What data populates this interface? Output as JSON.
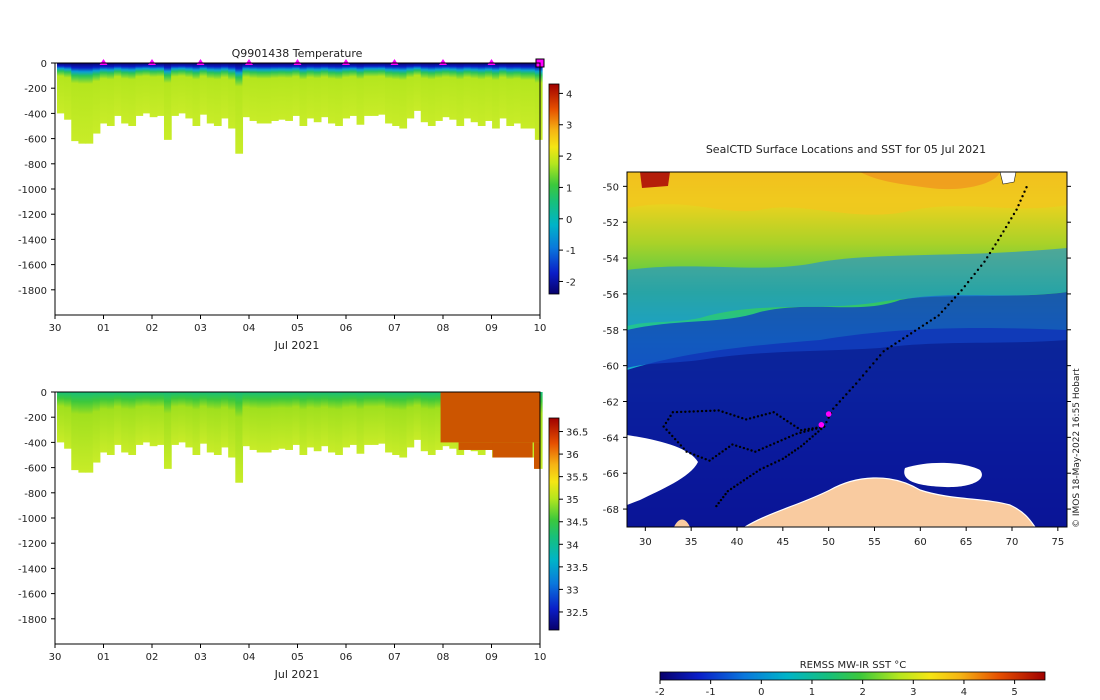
{
  "chart_data": [
    {
      "type": "heatmap",
      "title": "Q9901438  Temperature",
      "xlabel": "Jul 2021",
      "ylabel": "",
      "x_ticks": [
        "30",
        "01",
        "02",
        "03",
        "04",
        "05",
        "06",
        "07",
        "08",
        "09",
        "10"
      ],
      "x_range_days": [
        0,
        10
      ],
      "ylim": [
        -2000,
        0
      ],
      "y_ticks": [
        0,
        -200,
        -400,
        -600,
        -800,
        -1000,
        -1200,
        -1400,
        -1600,
        -1800
      ],
      "colorbar": {
        "range": [
          -2.4,
          4.3
        ],
        "ticks": [
          -2,
          -1,
          0,
          1,
          2,
          3,
          4
        ]
      },
      "profile_markers_days": [
        1,
        2,
        3,
        4,
        5,
        6,
        7,
        8,
        9,
        10
      ],
      "marker_color": "#ff00ff"
    },
    {
      "type": "heatmap",
      "title": "",
      "xlabel": "Jul 2021",
      "ylabel": "",
      "x_ticks": [
        "30",
        "01",
        "02",
        "03",
        "04",
        "05",
        "06",
        "07",
        "08",
        "09",
        "10"
      ],
      "x_range_days": [
        0,
        10
      ],
      "ylim": [
        -2000,
        0
      ],
      "y_ticks": [
        0,
        -200,
        -400,
        -600,
        -800,
        -1000,
        -1200,
        -1400,
        -1600,
        -1800
      ],
      "colorbar": {
        "range": [
          32.1,
          36.8
        ],
        "ticks": [
          32.5,
          33,
          33.5,
          34,
          34.5,
          35,
          35.5,
          36,
          36.5
        ]
      },
      "anomaly_start_day": 7.95,
      "anomaly_color": "#cc5500"
    },
    {
      "type": "heatmap",
      "title": "SealCTD Surface Locations and SST for 05 Jul 2021",
      "xlabel": "",
      "ylabel": "",
      "xlim": [
        28,
        76
      ],
      "ylim": [
        -69,
        -49.2
      ],
      "x_ticks": [
        30,
        35,
        40,
        45,
        50,
        55,
        60,
        65,
        70,
        75
      ],
      "y_ticks": [
        -50,
        -52,
        -54,
        -56,
        -58,
        -60,
        -62,
        -64,
        -66,
        -68
      ],
      "colorbar": {
        "label": "REMSS MW-IR SST °C",
        "range": [
          -2,
          5.6
        ],
        "ticks": [
          -2,
          -1,
          0,
          1,
          2,
          3,
          4,
          5
        ]
      },
      "track": [
        [
          49.5,
          -63.4
        ],
        [
          50.5,
          -62.4
        ],
        [
          53,
          -61
        ],
        [
          56,
          -59.2
        ],
        [
          59,
          -58.2
        ],
        [
          62,
          -57.2
        ],
        [
          64.5,
          -55.8
        ],
        [
          67,
          -54.2
        ],
        [
          68.5,
          -53
        ],
        [
          70.5,
          -51.3
        ],
        [
          71.8,
          -49.8
        ]
      ],
      "loop_track": [
        [
          49.5,
          -63.4
        ],
        [
          47,
          -63.6
        ],
        [
          44,
          -62.6
        ],
        [
          41,
          -63
        ],
        [
          38,
          -62.5
        ],
        [
          33,
          -62.6
        ],
        [
          32,
          -63.4
        ],
        [
          34.5,
          -64.8
        ],
        [
          37,
          -65.3
        ],
        [
          39.5,
          -64.4
        ],
        [
          42,
          -64.8
        ],
        [
          46.5,
          -63.8
        ],
        [
          49.5,
          -63.4
        ],
        [
          47,
          -64.5
        ],
        [
          45,
          -65.2
        ],
        [
          42.5,
          -65.8
        ],
        [
          39,
          -67
        ],
        [
          37.5,
          -68
        ]
      ],
      "highlight": [
        [
          49.2,
          -63.3
        ],
        [
          50,
          -62.7
        ]
      ],
      "highlight_color": "#ff00ff",
      "land_color": "#f9cba0",
      "ice_color": "#ffffff",
      "credit": "© IMOS 18-May-2022 16:55 Hobart"
    }
  ]
}
